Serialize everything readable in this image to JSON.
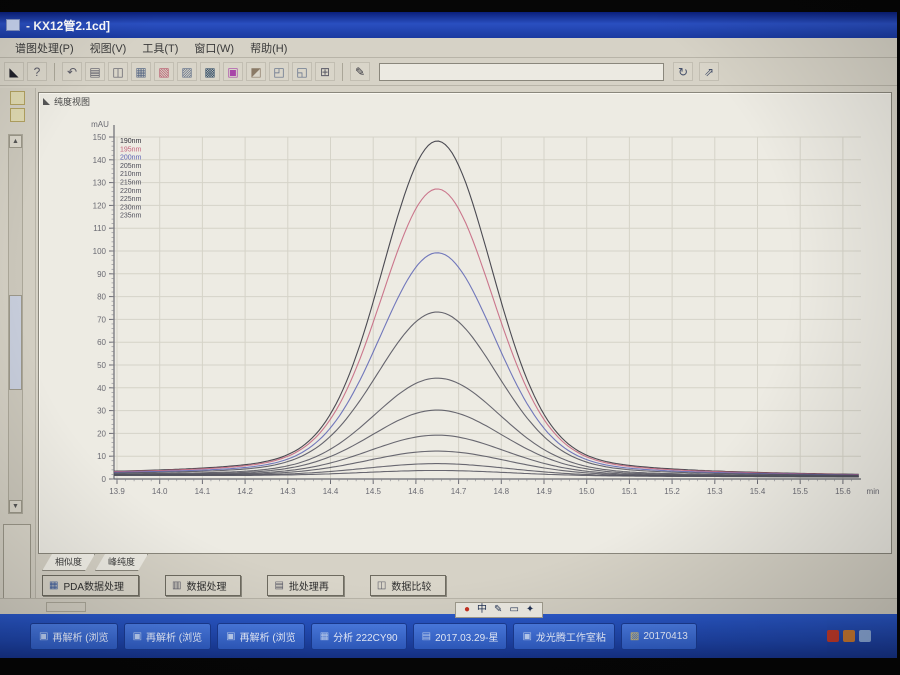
{
  "window": {
    "title": "- KX12管2.1cd]"
  },
  "menu": {
    "items": [
      {
        "key": "process",
        "label": "谱图处理(P)"
      },
      {
        "key": "view",
        "label": "视图(V)"
      },
      {
        "key": "tools",
        "label": "工具(T)"
      },
      {
        "key": "window",
        "label": "窗口(W)"
      },
      {
        "key": "help",
        "label": "帮助(H)"
      }
    ]
  },
  "toolbar": {
    "search_value": "",
    "icons_left": [
      {
        "name": "chromatogram-icon",
        "glyph": "◣",
        "color": "#20202a"
      },
      {
        "name": "help-icon",
        "glyph": "?",
        "color": "#5a5a66"
      },
      {
        "sep": true
      },
      {
        "name": "undo-icon",
        "glyph": "↶",
        "color": "#5a5a66"
      },
      {
        "name": "print-icon",
        "glyph": "▤",
        "color": "#5a5a66"
      },
      {
        "name": "copy-icon",
        "glyph": "◫",
        "color": "#5a5a66"
      },
      {
        "name": "data-view-icon",
        "glyph": "▦",
        "color": "#5a6a86"
      },
      {
        "name": "report-red-icon",
        "glyph": "▧",
        "color": "#b8546a"
      },
      {
        "name": "report-icon",
        "glyph": "▨",
        "color": "#5a6a86"
      },
      {
        "name": "image-icon",
        "glyph": "▩",
        "color": "#35506a"
      },
      {
        "name": "method-magenta-icon",
        "glyph": "▣",
        "color": "#a844a8"
      },
      {
        "name": "save-icon",
        "glyph": "◩",
        "color": "#8a7a66"
      },
      {
        "name": "window-tile-icon",
        "glyph": "◰",
        "color": "#5a6a86"
      },
      {
        "name": "window-cascade-icon",
        "glyph": "◱",
        "color": "#5a6a86"
      },
      {
        "name": "calc-icon",
        "glyph": "⊞",
        "color": "#5a5a66"
      },
      {
        "sep": true
      },
      {
        "name": "edit-pen-icon",
        "glyph": "✎",
        "color": "#30303a"
      }
    ],
    "icons_right": [
      {
        "name": "refresh-icon",
        "glyph": "↻",
        "color": "#45506a"
      },
      {
        "name": "go-icon",
        "glyph": "⇗",
        "color": "#45506a"
      }
    ]
  },
  "panel": {
    "header": "纯度视图",
    "tabs": [
      {
        "label": "相似度",
        "active": true
      },
      {
        "label": "峰纯度",
        "active": false
      }
    ]
  },
  "bottom_buttons": [
    {
      "name": "pda-data-processing-button",
      "glyph": "▦",
      "color": "#3a5a9a",
      "label": "PDA数据处理"
    },
    {
      "name": "data-processing-button",
      "glyph": "▥",
      "color": "#5a5a66",
      "label": "数据处理"
    },
    {
      "name": "batch-reprocess-button",
      "glyph": "▤",
      "color": "#5a5a66",
      "label": "批处理再"
    },
    {
      "name": "data-compare-button",
      "glyph": "◫",
      "color": "#5a5a66",
      "label": "数据比较"
    }
  ],
  "chart_data": {
    "type": "line",
    "title": "纯度视图",
    "xlabel": "min",
    "ylabel": "mAU",
    "xlim": [
      13.89,
      15.65
    ],
    "ylim": [
      0,
      155
    ],
    "x_ticks": [
      13.9,
      14.0,
      14.1,
      14.2,
      14.3,
      14.4,
      14.5,
      14.6,
      14.7,
      14.8,
      14.9,
      15.0,
      15.1,
      15.2,
      15.3,
      15.4,
      15.5,
      15.6
    ],
    "y_ticks": [
      0,
      10,
      20,
      30,
      40,
      50,
      60,
      70,
      80,
      90,
      100,
      110,
      120,
      130,
      140,
      150
    ],
    "grid": true,
    "legend_position": "top-left",
    "peak_center_min": 14.65,
    "baseline_mAU": 1.5,
    "series": [
      {
        "name": "190nm",
        "color": "#2e2e38",
        "height_mAU": 147,
        "sigma_min": 0.125
      },
      {
        "name": "195nm",
        "color": "#c4627c",
        "height_mAU": 126,
        "sigma_min": 0.128
      },
      {
        "name": "200nm",
        "color": "#5b63b4",
        "height_mAU": 98,
        "sigma_min": 0.132
      },
      {
        "name": "205nm",
        "color": "#4c4c58",
        "height_mAU": 72,
        "sigma_min": 0.138
      },
      {
        "name": "210nm",
        "color": "#50505c",
        "height_mAU": 43,
        "sigma_min": 0.145
      },
      {
        "name": "215nm",
        "color": "#50505c",
        "height_mAU": 29,
        "sigma_min": 0.15
      },
      {
        "name": "220nm",
        "color": "#50505c",
        "height_mAU": 18,
        "sigma_min": 0.155
      },
      {
        "name": "225nm",
        "color": "#50505c",
        "height_mAU": 11,
        "sigma_min": 0.16
      },
      {
        "name": "230nm",
        "color": "#50505c",
        "height_mAU": 5.5,
        "sigma_min": 0.165
      },
      {
        "name": "235nm",
        "color": "#50505c",
        "height_mAU": 2.5,
        "sigma_min": 0.17
      }
    ]
  },
  "ime": {
    "icons": [
      {
        "name": "ime-state-icon",
        "glyph": "●",
        "color": "#c03020"
      },
      {
        "name": "ime-chinese-icon",
        "glyph": "中",
        "color": "#203050"
      },
      {
        "name": "ime-pen-icon",
        "glyph": "✎",
        "color": "#203050"
      },
      {
        "name": "ime-keyboard-icon",
        "glyph": "▭",
        "color": "#203050"
      },
      {
        "name": "ime-tools-icon",
        "glyph": "✦",
        "color": "#203050"
      }
    ]
  },
  "taskbar": {
    "items": [
      {
        "name": "task-reanalysis-1",
        "glyph": "▣",
        "color": "#bcd0f4",
        "label": "再解析 (浏览"
      },
      {
        "name": "task-reanalysis-2",
        "glyph": "▣",
        "color": "#bcd0f4",
        "label": "再解析 (浏览"
      },
      {
        "name": "task-reanalysis-3",
        "glyph": "▣",
        "color": "#bcd0f4",
        "label": "再解析 (浏览"
      },
      {
        "name": "task-analysis",
        "glyph": "▦",
        "color": "#bcd0f4",
        "label": "分析 222CY90"
      },
      {
        "name": "task-date-window",
        "glyph": "▤",
        "color": "#bcd0f4",
        "label": "2017.03.29-星"
      },
      {
        "name": "task-workshop",
        "glyph": "▣",
        "color": "#bcd0f4",
        "label": "龙光腾工作室粘"
      },
      {
        "name": "task-folder-20170413",
        "glyph": "▨",
        "color": "#e8c860",
        "label": "20170413"
      }
    ],
    "tray_icons": [
      {
        "name": "tray-red-icon",
        "color": "#c23a2a"
      },
      {
        "name": "tray-orange-icon",
        "color": "#c87830"
      },
      {
        "name": "tray-blue-icon",
        "color": "#8aa8d8"
      }
    ]
  }
}
